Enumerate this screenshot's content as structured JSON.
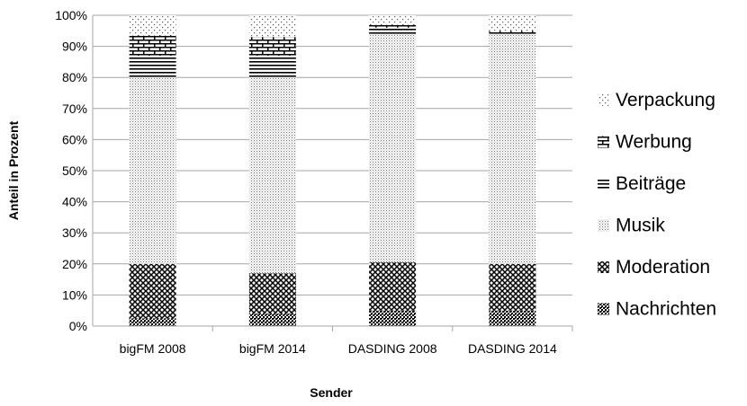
{
  "chart_data": {
    "type": "bar",
    "stacked": true,
    "categories": [
      "bigFM 2008",
      "bigFM 2014",
      "DASDING 2008",
      "DASDING 2014"
    ],
    "series": [
      {
        "name": "Nachrichten",
        "values": [
          2.5,
          4,
          5,
          5
        ],
        "pattern": "checker"
      },
      {
        "name": "Moderation",
        "values": [
          17.5,
          13,
          15.5,
          15
        ],
        "pattern": "crosshatch"
      },
      {
        "name": "Musik",
        "values": [
          60,
          63,
          73.5,
          74
        ],
        "pattern": "finedots"
      },
      {
        "name": "Beiträge",
        "values": [
          7,
          7,
          2,
          0.5
        ],
        "pattern": "hlines"
      },
      {
        "name": "Werbung",
        "values": [
          6.5,
          6,
          1,
          0.5
        ],
        "pattern": "brick"
      },
      {
        "name": "Verpackung",
        "values": [
          6.5,
          7,
          3,
          5
        ],
        "pattern": "sparsedots"
      }
    ],
    "yticks": [
      "0%",
      "10%",
      "20%",
      "30%",
      "40%",
      "50%",
      "60%",
      "70%",
      "80%",
      "90%",
      "100%"
    ],
    "ylim": [
      0,
      100
    ],
    "xlabel": "Sender",
    "ylabel": "Anteil in Prozent",
    "legend": "right",
    "grid": true,
    "colors": {
      "grid": "#a6a6a6",
      "bar_fill": "#000000",
      "background": "#ffffff"
    }
  }
}
